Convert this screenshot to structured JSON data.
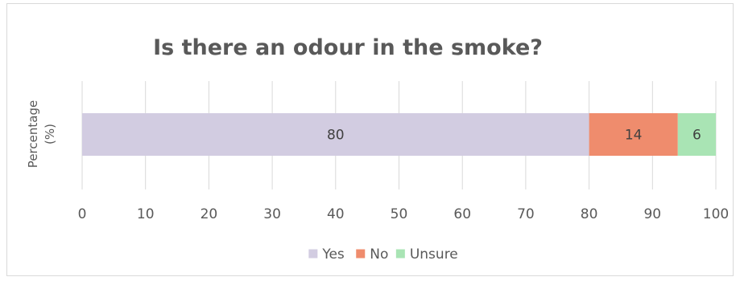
{
  "chart_data": {
    "type": "bar",
    "orientation": "horizontal",
    "stacked": true,
    "title": "Is there an odour in the smoke?",
    "ylabel_lines": [
      "Percentage",
      "(%)"
    ],
    "xlabel": "",
    "xlim": [
      0,
      100
    ],
    "x_ticks": [
      "0",
      "10",
      "20",
      "30",
      "40",
      "50",
      "60",
      "70",
      "80",
      "90",
      "100"
    ],
    "grid": "vertical",
    "legend_position": "bottom",
    "series": [
      {
        "name": "Yes",
        "values": [
          80
        ],
        "color": "#d2cce1"
      },
      {
        "name": "No",
        "values": [
          14
        ],
        "color": "#ef8c6d"
      },
      {
        "name": "Unsure",
        "values": [
          6
        ],
        "color": "#a9e4b4"
      }
    ]
  }
}
